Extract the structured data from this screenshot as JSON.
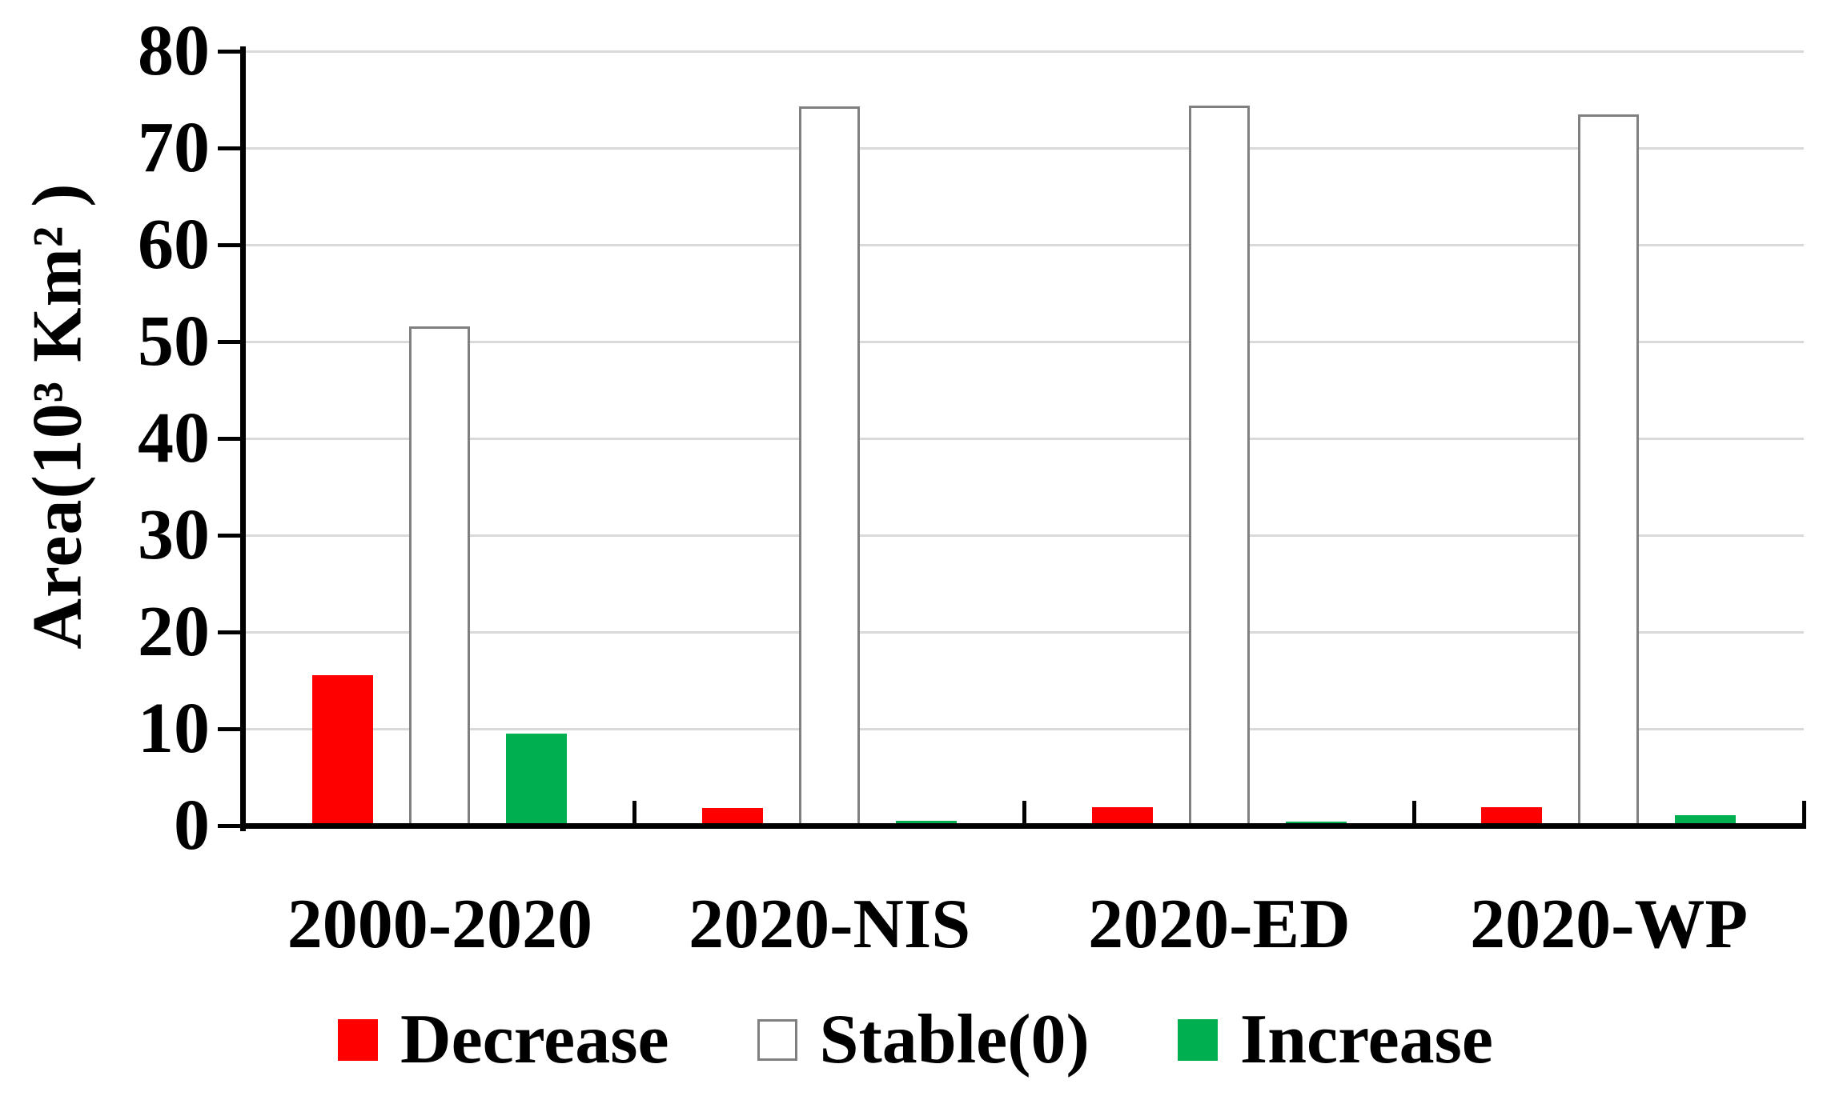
{
  "figure": {
    "background": "#ffffff",
    "axis_color": "#000000",
    "gridline_color": "#d9d9d9"
  },
  "chart_data": {
    "type": "bar",
    "title": "",
    "categories": [
      "2000-2020",
      "2020-NIS",
      "2020-ED",
      "2020-WP"
    ],
    "series": [
      {
        "name": "Decrease",
        "color": "#ff0000",
        "border_color": "",
        "values": [
          15.5,
          1.8,
          1.9,
          1.9
        ]
      },
      {
        "name": "Stable(0)",
        "color": "#ffffff",
        "border_color": "#808080",
        "values": [
          51.6,
          74.3,
          74.4,
          73.5
        ]
      },
      {
        "name": "Increase",
        "color": "#00b050",
        "border_color": "",
        "values": [
          9.5,
          0.5,
          0.4,
          1.1
        ]
      }
    ],
    "xlabel": "",
    "ylabel": "Area(10³ Km² )",
    "ylim": [
      0,
      80
    ],
    "ytick_step": 10,
    "ytick_labels": [
      "0",
      "10",
      "20",
      "30",
      "40",
      "50",
      "60",
      "70",
      "80"
    ],
    "grid": true,
    "legend_position": "bottom",
    "legend_entries": [
      "Decrease",
      "Stable(0)",
      "Increase"
    ]
  }
}
